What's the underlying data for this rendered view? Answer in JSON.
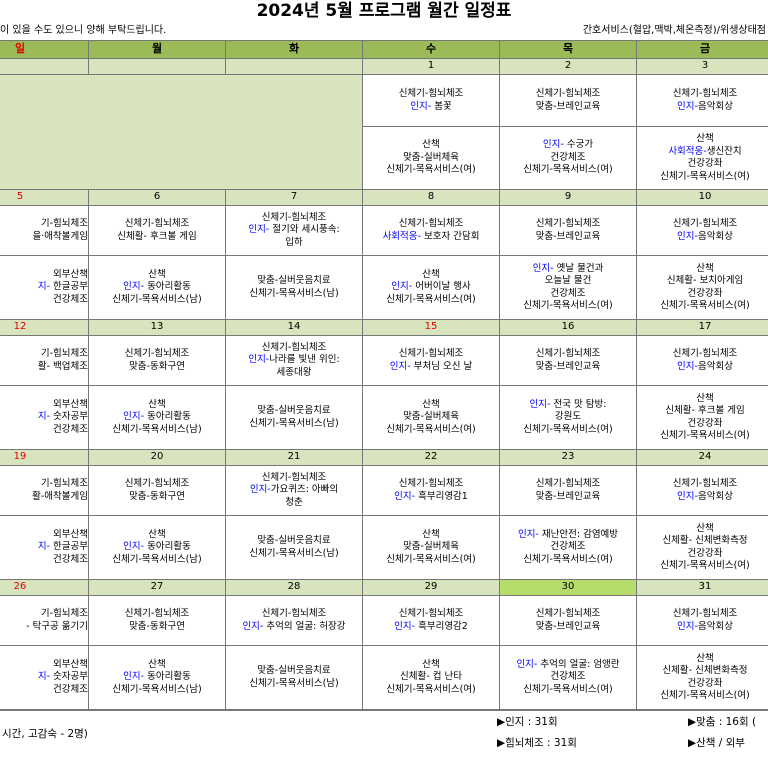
{
  "header": {
    "title": "2024년 5월 프로그램 월간 일정표",
    "note_left": "이 있을 수도 있으니 양해 부탁드립니다.",
    "note_right": "간호서비스(혈압,맥박,체온측정)/위생상태점"
  },
  "days": [
    "일",
    "월",
    "화",
    "수",
    "목",
    "금"
  ],
  "weeks": [
    {
      "dates": [
        null,
        null,
        null,
        1,
        2,
        3
      ],
      "red_columns": [
        0
      ],
      "am": [
        null,
        null,
        null,
        [
          "신체기-힘뇌체조",
          {
            "em": "인지-",
            "text": " 봄꽃"
          }
        ],
        [
          "신체기-힘뇌체조",
          "맞춤-브레인교육"
        ],
        [
          "신체기-힘뇌체조",
          {
            "em": "인지-",
            "text": "음악회상"
          }
        ]
      ],
      "pm": [
        null,
        null,
        null,
        [
          "산책",
          "맞춤-실버체육",
          "신체기-목욕서비스(여)"
        ],
        [
          {
            "em": "인지-",
            "text": " 수궁가"
          },
          "건강체조",
          "신체기-목욕서비스(여)"
        ],
        [
          "산책",
          {
            "em": "사회적응-",
            "text": "생신잔치"
          },
          "건강강좌",
          "신체기-목욕서비스(여)"
        ]
      ]
    },
    {
      "dates": [
        5,
        6,
        7,
        8,
        9,
        10
      ],
      "red_columns": [
        0
      ],
      "am": [
        [
          "기-힘뇌체조",
          "을·애착볼게임"
        ],
        [
          "신체기-힘뇌체조",
          "신체활- 후크볼 게임"
        ],
        [
          "신체기-힘뇌체조",
          {
            "em": "인지-",
            "text": " 절기와 세시풍속:"
          },
          "입하"
        ],
        [
          "신체기-힘뇌체조",
          {
            "em": "사회적응-",
            "text": " 보호자 간담회"
          }
        ],
        [
          "신체기-힘뇌체조",
          "맞춤-브레인교육"
        ],
        [
          "신체기-힘뇌체조",
          {
            "em": "인지-",
            "text": "음악회상"
          }
        ]
      ],
      "pm": [
        [
          "외부산책",
          {
            "em": "지-",
            "text": " 한글공부"
          },
          "건강체조"
        ],
        [
          "산책",
          {
            "em": "인지-",
            "text": " 동아리활동"
          },
          "신체기-목욕서비스(남)"
        ],
        [
          "맞춤-실버웃음치료",
          "신체기-목욕서비스(남)"
        ],
        [
          "산책",
          {
            "em": "인지-",
            "text": " 어버이날 행사"
          },
          "신체기-목욕서비스(여)"
        ],
        [
          {
            "em": "인지-",
            "text": " 옛날 물건과"
          },
          "오늘날 물건",
          "건강체조",
          "신체기-목욕서비스(여)"
        ],
        [
          "산책",
          "신체활- 보치아게임",
          "건강강좌",
          "신체기-목욕서비스(여)"
        ]
      ]
    },
    {
      "dates": [
        12,
        13,
        14,
        15,
        16,
        17
      ],
      "red_columns": [
        0,
        3
      ],
      "am": [
        [
          "기-힘뇌체조",
          "활- 백업체조"
        ],
        [
          "신체기-힘뇌체조",
          "맞춤-동화구연"
        ],
        [
          "신체기-힘뇌체조",
          {
            "em": "인지-",
            "text": "나라를 빛낸 위인:"
          },
          "세종대왕"
        ],
        [
          "신체기-힘뇌체조",
          {
            "em": "인지-",
            "text": " 부처님 오신 날"
          }
        ],
        [
          "신체기-힘뇌체조",
          "맞춤-브레인교육"
        ],
        [
          "신체기-힘뇌체조",
          {
            "em": "인지-",
            "text": "음악회상"
          }
        ]
      ],
      "pm": [
        [
          "외부산책",
          {
            "em": "지-",
            "text": " 숫자공부"
          },
          "건강체조"
        ],
        [
          "산책",
          {
            "em": "인지-",
            "text": " 동아리활동"
          },
          "신체기-목욕서비스(남)"
        ],
        [
          "맞춤-실버웃음치료",
          "신체기-목욕서비스(남)"
        ],
        [
          "산책",
          "맞춤-실버체육",
          "신체기-목욕서비스(여)"
        ],
        [
          {
            "em": "인지-",
            "text": " 전국 맛 탐방:"
          },
          "강원도",
          "신체기-목욕서비스(여)"
        ],
        [
          "산책",
          "신체활- 후크볼 게임",
          "건강강좌",
          "신체기-목욕서비스(여)"
        ]
      ]
    },
    {
      "dates": [
        19,
        20,
        21,
        22,
        23,
        24
      ],
      "red_columns": [
        0
      ],
      "am": [
        [
          "기-힘뇌체조",
          "활-애착볼게임"
        ],
        [
          "신체기-힘뇌체조",
          "맞춤-동화구연"
        ],
        [
          "신체기-힘뇌체조",
          {
            "em": "인지-",
            "text": "가요퀴즈: 아빠의"
          },
          "청춘"
        ],
        [
          "신체기-힘뇌체조",
          {
            "em": "인지-",
            "text": " 흑부리영감1"
          }
        ],
        [
          "신체기-힘뇌체조",
          "맞춤-브레인교육"
        ],
        [
          "신체기-힘뇌체조",
          {
            "em": "인지-",
            "text": "음악회상"
          }
        ]
      ],
      "pm": [
        [
          "외부산책",
          {
            "em": "지-",
            "text": " 한글공부"
          },
          "건강체조"
        ],
        [
          "산책",
          {
            "em": "인지-",
            "text": " 동아리활동"
          },
          "신체기-목욕서비스(남)"
        ],
        [
          "맞춤-실버웃음치료",
          "신체기-목욕서비스(남)"
        ],
        [
          "산책",
          "맞춤-실버체육",
          "신체기-목욕서비스(여)"
        ],
        [
          {
            "em": "인지-",
            "text": " 재난안전: 감염예방"
          },
          "건강체조",
          "신체기-목욕서비스(여)"
        ],
        [
          "산책",
          "신체활- 신체변화측정",
          "건강강좌",
          "신체기-목욕서비스(여)"
        ]
      ]
    },
    {
      "dates": [
        26,
        27,
        28,
        29,
        30,
        31
      ],
      "red_columns": [
        0
      ],
      "highlight_columns": [
        4
      ],
      "am": [
        [
          "기-힘뇌체조",
          "- 탁구공 옮기기"
        ],
        [
          "신체기-힘뇌체조",
          "맞춤-동화구연"
        ],
        [
          "신체기-힘뇌체조",
          {
            "em": "인지-",
            "text": " 추억의 얼굴: 허장강"
          }
        ],
        [
          "신체기-힘뇌체조",
          {
            "em": "인지-",
            "text": " 흑부리영감2"
          }
        ],
        [
          "신체기-힘뇌체조",
          "맞춤-브레인교육"
        ],
        [
          "신체기-힘뇌체조",
          {
            "em": "인지-",
            "text": "음악회상"
          }
        ]
      ],
      "pm": [
        [
          "외부산책",
          {
            "em": "지-",
            "text": " 숫자공부"
          },
          "건강체조"
        ],
        [
          "산책",
          {
            "em": "인지-",
            "text": " 동아리활동"
          },
          "신체기-목욕서비스(남)"
        ],
        [
          "맞춤-실버웃음치료",
          "신체기-목욕서비스(남)"
        ],
        [
          "산책",
          "신체활- 컵 난타",
          "신체기-목욕서비스(여)"
        ],
        [
          {
            "em": "인지-",
            "text": " 추억의 얼굴: 엄앵란"
          },
          "건강체조",
          "신체기-목욕서비스(여)"
        ],
        [
          "산책",
          "신체활- 신체변화측정",
          "건강강좌",
          "신체기-목욕서비스(여)"
        ]
      ]
    }
  ],
  "footer": {
    "left": "시간, 고감숙 - 2명)",
    "items": [
      "▶인지 : 31회",
      "▶맞춤 : 16회 (",
      "▶힘뇌체조 : 31회",
      "▶산책 / 외부 "
    ]
  }
}
